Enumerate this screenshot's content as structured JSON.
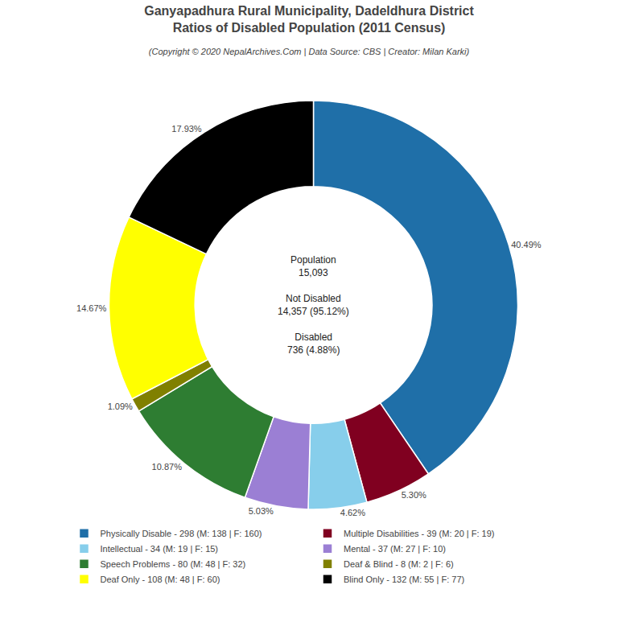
{
  "chart_data": {
    "type": "pie",
    "title": "Ganyapadhura Rural Municipality, Dadeldhura District\nRatios of Disabled Population (2011 Census)",
    "subtitle": "(Copyright © 2020 NepalArchives.Com | Data Source: CBS | Creator: Milan Karki)",
    "categories": [
      "Physically Disable - 298 (M: 138 | F: 160)",
      "Multiple Disabilities - 39 (M: 20 | F: 19)",
      "Intellectual - 34 (M: 19 | F: 15)",
      "Mental - 37 (M: 27 | F: 10)",
      "Speech Problems - 80 (M: 48 | F: 32)",
      "Deaf & Blind - 8 (M: 2 | F: 6)",
      "Deaf Only - 108 (M: 48 | F: 60)",
      "Blind Only - 132 (M: 55 | F: 77)"
    ],
    "values": [
      40.49,
      5.3,
      4.62,
      5.03,
      10.87,
      1.09,
      14.67,
      17.93
    ],
    "value_labels": [
      "40.49%",
      "5.30%",
      "4.62%",
      "5.03%",
      "10.87%",
      "1.09%",
      "14.67%",
      "17.93%"
    ],
    "colors": [
      "#1f6fa8",
      "#800020",
      "#87ceeb",
      "#9b7fd4",
      "#2e7d32",
      "#808000",
      "#ffff00",
      "#000000"
    ],
    "data_labels": true,
    "legend": "bottom",
    "annotations": [
      "Population\n15,093",
      "Not Disabled\n14,357 (95.12%)",
      "Disabled\n736 (4.88%)"
    ]
  }
}
